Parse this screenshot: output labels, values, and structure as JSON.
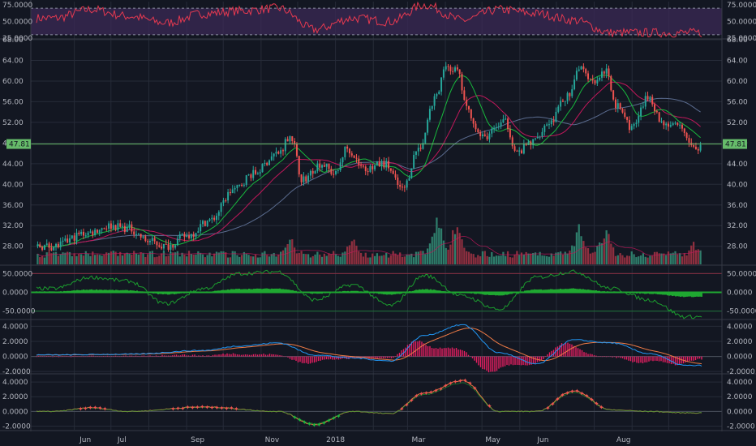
{
  "colors": {
    "background": "#131722",
    "grid": "#262b38",
    "axis_text": "#b2b5be",
    "up": "#26a69a",
    "down": "#ef5350",
    "volume_up": "#2e7d6b",
    "volume_down": "#8e2f3f",
    "rsi": "#e53950",
    "rsi_band": "#3b2a55",
    "ma_fast": "#18b83d",
    "ma_slow": "#5a6b8e",
    "ma_mid": "#c2185b",
    "osc_line": "#1b9c2e",
    "osc_hist": "#1fa831",
    "macd_line": "#2196f3",
    "signal_line": "#ef7b45",
    "hist_neg": "#e91e63",
    "last_price": "#66bb6a"
  },
  "x_labels": [
    "Jun",
    "Jul",
    "Sep",
    "Nov",
    "2018",
    "Mar",
    "May",
    "Jun",
    "Aug"
  ],
  "last_price_label": "47.81",
  "chart_data": [
    {
      "type": "line",
      "panel": "rsi",
      "ylim": [
        25,
        80
      ],
      "y_ticks": [
        "75.0000",
        "50.0000",
        "25.0000"
      ],
      "levels": [
        70,
        30
      ],
      "x": [
        "2017-05",
        "2017-06",
        "2017-07",
        "2017-08",
        "2017-09",
        "2017-10",
        "2017-11",
        "2017-12",
        "2018-01",
        "2018-02",
        "2018-03",
        "2018-04",
        "2018-05",
        "2018-06",
        "2018-07",
        "2018-08"
      ],
      "values": [
        55,
        68,
        58,
        48,
        62,
        66,
        70,
        38,
        55,
        50,
        75,
        52,
        68,
        62,
        52,
        33
      ]
    },
    {
      "type": "candlestick",
      "panel": "price",
      "ylim": [
        24.5,
        68
      ],
      "y_ticks": [
        "68.00",
        "64.00",
        "60.00",
        "56.00",
        "52.00",
        "48.00",
        "44.00",
        "40.00",
        "36.00",
        "32.00",
        "28.00"
      ],
      "anchors": [
        {
          "d": "2017-05-15",
          "p": 28
        },
        {
          "d": "2017-06-10",
          "p": 30.5
        },
        {
          "d": "2017-07-01",
          "p": 32
        },
        {
          "d": "2017-07-15",
          "p": 31.5
        },
        {
          "d": "2017-08-01",
          "p": 29
        },
        {
          "d": "2017-08-15",
          "p": 28
        },
        {
          "d": "2017-09-01",
          "p": 30
        },
        {
          "d": "2017-09-20",
          "p": 33
        },
        {
          "d": "2017-10-10",
          "p": 39
        },
        {
          "d": "2017-10-25",
          "p": 42
        },
        {
          "d": "2017-11-15",
          "p": 46
        },
        {
          "d": "2017-11-25",
          "p": 49.5
        },
        {
          "d": "2017-12-05",
          "p": 41
        },
        {
          "d": "2017-12-20",
          "p": 44
        },
        {
          "d": "2018-01-01",
          "p": 42
        },
        {
          "d": "2018-01-10",
          "p": 47
        },
        {
          "d": "2018-01-25",
          "p": 43
        },
        {
          "d": "2018-02-10",
          "p": 44
        },
        {
          "d": "2018-02-25",
          "p": 39
        },
        {
          "d": "2018-03-10",
          "p": 47
        },
        {
          "d": "2018-03-25",
          "p": 57
        },
        {
          "d": "2018-04-01",
          "p": 63
        },
        {
          "d": "2018-04-10",
          "p": 62
        },
        {
          "d": "2018-04-20",
          "p": 54
        },
        {
          "d": "2018-05-01",
          "p": 49
        },
        {
          "d": "2018-05-20",
          "p": 52
        },
        {
          "d": "2018-05-30",
          "p": 46
        },
        {
          "d": "2018-06-10",
          "p": 48
        },
        {
          "d": "2018-06-25",
          "p": 52
        },
        {
          "d": "2018-07-10",
          "p": 57
        },
        {
          "d": "2018-07-20",
          "p": 63
        },
        {
          "d": "2018-08-01",
          "p": 60
        },
        {
          "d": "2018-08-10",
          "p": 62
        },
        {
          "d": "2018-08-20",
          "p": 55
        },
        {
          "d": "2018-09-01",
          "p": 51
        },
        {
          "d": "2018-09-15",
          "p": 57
        },
        {
          "d": "2018-09-25",
          "p": 52
        },
        {
          "d": "2018-10-10",
          "p": 51
        },
        {
          "d": "2018-10-20",
          "p": 47
        }
      ],
      "volume_bursts": [
        {
          "d": "2017-11-25",
          "v": 0.55
        },
        {
          "d": "2018-01-15",
          "v": 0.5
        },
        {
          "d": "2018-03-25",
          "v": 0.95
        },
        {
          "d": "2018-04-10",
          "v": 0.85
        },
        {
          "d": "2018-07-20",
          "v": 0.8
        },
        {
          "d": "2018-08-10",
          "v": 0.75
        },
        {
          "d": "2018-10-22",
          "v": 0.45
        }
      ]
    },
    {
      "type": "line",
      "panel": "oscillator",
      "ylim": [
        -70,
        70
      ],
      "y_ticks": [
        "50.0000",
        "0.0000",
        "-50.0000"
      ],
      "levels": [
        50,
        -50
      ],
      "x": [
        "2017-05",
        "2017-06",
        "2017-07",
        "2017-08",
        "2017-09",
        "2017-10",
        "2017-11",
        "2017-12",
        "2018-01",
        "2018-02",
        "2018-03",
        "2018-04",
        "2018-05",
        "2018-06",
        "2018-07",
        "2018-08",
        "2018-09",
        "2018-10"
      ],
      "values": [
        10,
        40,
        30,
        -30,
        10,
        50,
        55,
        -20,
        20,
        -35,
        45,
        -10,
        -45,
        40,
        55,
        10,
        -20,
        -65
      ]
    },
    {
      "type": "line",
      "panel": "macd",
      "ylim": [
        -2.2,
        4.8
      ],
      "y_ticks": [
        "4.0000",
        "2.0000",
        "0.0000",
        "-2.0000"
      ],
      "x": [
        "2017-05",
        "2017-07",
        "2017-09",
        "2017-10",
        "2017-11",
        "2017-12",
        "2018-01",
        "2018-02",
        "2018-03",
        "2018-04",
        "2018-05",
        "2018-06",
        "2018-07",
        "2018-08",
        "2018-09",
        "2018-10"
      ],
      "values": [
        0.2,
        0.3,
        0.8,
        1.4,
        1.8,
        0.2,
        -0.2,
        -0.6,
        2.8,
        4.2,
        0.5,
        -1.0,
        2.2,
        1.8,
        0.4,
        -1.2
      ]
    },
    {
      "type": "line",
      "panel": "momentum",
      "ylim": [
        -2.5,
        5
      ],
      "y_ticks": [
        "4.0000",
        "2.0000",
        "0.0000",
        "-2.0000"
      ],
      "x": [
        "2017-05",
        "2017-06",
        "2017-07",
        "2017-09",
        "2017-11",
        "2017-12",
        "2018-01",
        "2018-02",
        "2018-03",
        "2018-04",
        "2018-05",
        "2018-06",
        "2018-07",
        "2018-08",
        "2018-09",
        "2018-10"
      ],
      "values": [
        0,
        0.5,
        0,
        0.6,
        0,
        -1.8,
        0,
        -0.3,
        2.5,
        4.2,
        0,
        0,
        2.8,
        0.2,
        0,
        -0.2
      ]
    }
  ]
}
